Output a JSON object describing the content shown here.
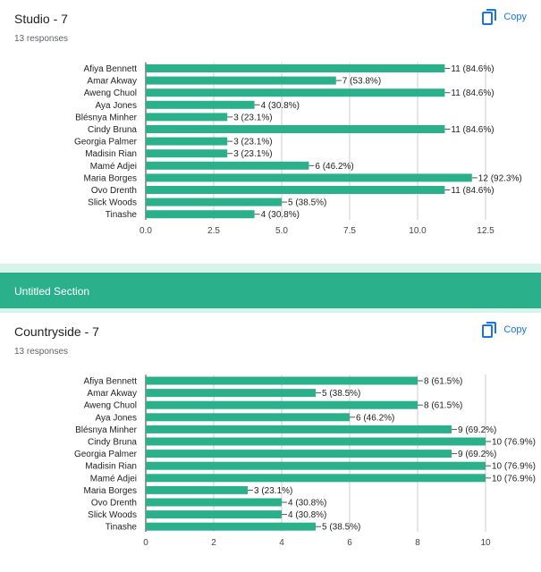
{
  "section": {
    "title": "Untitled Section"
  },
  "copy_label": "Copy",
  "colors": {
    "bar": "#2bb08c",
    "section": "#2bb08c",
    "link": "#1a73e8"
  },
  "icons": {
    "copy": "copy-icon"
  },
  "cards": [
    {
      "title": "Studio - 7",
      "responses": "13 responses"
    },
    {
      "title": "Countryside - 7",
      "responses": "13 responses"
    }
  ],
  "chart_data": [
    {
      "type": "bar",
      "orientation": "horizontal",
      "title": "Studio - 7",
      "categories": [
        "Afiya Bennett",
        "Amar Akway",
        "Aweng Chuol",
        "Aya Jones",
        "Blésnya Minher",
        "Cindy Bruna",
        "Georgia Palmer",
        "Madisin Rian",
        "Mamé Adjei",
        "Maria Borges",
        "Ovo Drenth",
        "Slick Woods",
        "Tinashe"
      ],
      "values": [
        11,
        7,
        11,
        4,
        3,
        11,
        3,
        3,
        6,
        12,
        11,
        5,
        4
      ],
      "labels": [
        "11 (84.6%)",
        "7 (53.8%)",
        "11 (84.6%)",
        "4 (30.8%)",
        "3 (23.1%)",
        "11 (84.6%)",
        "3 (23.1%)",
        "3 (23.1%)",
        "6 (46.2%)",
        "12 (92.3%)",
        "11 (84.6%)",
        "5 (38.5%)",
        "4 (30.8%)"
      ],
      "xlim": [
        0,
        12.5
      ],
      "xticks": [
        "0.0",
        "2.5",
        "5.0",
        "7.5",
        "10.0",
        "12.5"
      ],
      "grid": true
    },
    {
      "type": "bar",
      "orientation": "horizontal",
      "title": "Countryside - 7",
      "categories": [
        "Afiya Bennett",
        "Amar Akway",
        "Aweng Chuol",
        "Aya Jones",
        "Blésnya Minher",
        "Cindy Bruna",
        "Georgia Palmer",
        "Madisin Rian",
        "Mamé Adjei",
        "Maria Borges",
        "Ovo Drenth",
        "Slick Woods",
        "Tinashe"
      ],
      "values": [
        8,
        5,
        8,
        6,
        9,
        10,
        9,
        10,
        10,
        3,
        4,
        4,
        5
      ],
      "labels": [
        "8 (61.5%)",
        "5 (38.5%)",
        "8 (61.5%)",
        "6 (46.2%)",
        "9 (69.2%)",
        "10 (76.9%)",
        "9 (69.2%)",
        "10 (76.9%)",
        "10 (76.9%)",
        "3 (23.1%)",
        "4 (30.8%)",
        "4 (30.8%)",
        "5 (38.5%)"
      ],
      "xlim": [
        0,
        10
      ],
      "xticks": [
        "0",
        "2",
        "4",
        "6",
        "8",
        "10"
      ],
      "grid": true
    }
  ]
}
